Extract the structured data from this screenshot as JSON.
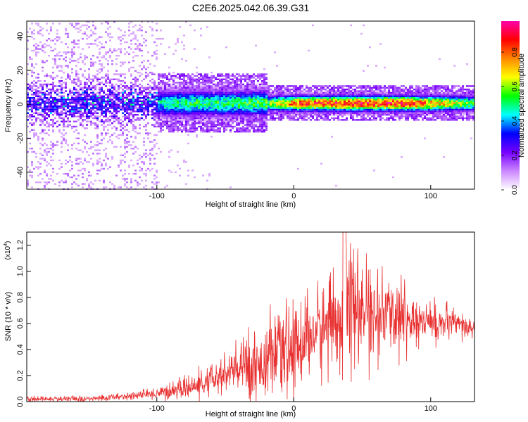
{
  "title": "C2E6.2025.042.06.39.G31",
  "chart_data": [
    {
      "type": "heatmap",
      "name": "spectrogram",
      "xlabel": "Height of straight line (km)",
      "ylabel": "Frequency (Hz)",
      "xlim": [
        -195,
        132
      ],
      "ylim": [
        -50,
        49
      ],
      "x_ticks": [
        -100,
        0,
        100
      ],
      "x_tick_labels": [
        "-100",
        "0",
        "100"
      ],
      "y_ticks": [
        -40,
        -20,
        0,
        20,
        40
      ],
      "y_tick_labels": [
        "-40",
        "-20",
        "0",
        "20",
        "40"
      ],
      "ridge": {
        "frequency_hz": 1,
        "peak_amplitude": 0.85,
        "onset_height_km": -110,
        "description_points_x": [
          -110,
          -80,
          -50,
          -20,
          0,
          40,
          80,
          132
        ],
        "amplitude_along_ridge": [
          0.4,
          0.5,
          0.5,
          0.55,
          0.8,
          0.85,
          0.85,
          0.55
        ]
      },
      "noise_region_xlim": [
        -195,
        -100
      ],
      "colorbar": {
        "label": "Normalized spectral amplitude",
        "range": [
          0,
          0.98
        ],
        "ticks": [
          0.0,
          0.2,
          0.4,
          0.6,
          0.8
        ],
        "tick_labels": [
          "0.0",
          "0.2",
          "0.4",
          "0.6",
          "0.8"
        ],
        "colors": [
          "#ffffff",
          "#cc88ff",
          "#7700ff",
          "#0000ff",
          "#00ffff",
          "#00ff00",
          "#ffff00",
          "#ff8800",
          "#ff0000",
          "#ff00aa"
        ]
      }
    },
    {
      "type": "line",
      "name": "snr",
      "xlabel": "Height of straight line (km)",
      "ylabel": "SNR (10 * v/v)",
      "scale_label_base": "(x10",
      "scale_label_exp": "4",
      "scale_label_end": ")",
      "xlim": [
        -195,
        132
      ],
      "ylim": [
        0,
        1.3
      ],
      "x_ticks": [
        -100,
        0,
        100
      ],
      "x_tick_labels": [
        "-100",
        "0",
        "100"
      ],
      "y_ticks": [
        0.0,
        0.2,
        0.4,
        0.6,
        0.8,
        1.0,
        1.2
      ],
      "y_tick_labels": [
        "0.0",
        "0.2",
        "0.4",
        "0.6",
        "0.8",
        "1.0",
        "1.2"
      ],
      "color": "#e83030",
      "envelope_x": [
        -195,
        -150,
        -110,
        -90,
        -70,
        -50,
        -40,
        -30,
        -20,
        -10,
        0,
        10,
        20,
        30,
        38,
        50,
        60,
        70,
        80,
        90,
        100,
        110,
        120,
        132
      ],
      "envelope_mean": [
        0.02,
        0.02,
        0.05,
        0.08,
        0.12,
        0.2,
        0.25,
        0.28,
        0.3,
        0.35,
        0.4,
        0.5,
        0.55,
        0.6,
        0.7,
        0.68,
        0.65,
        0.66,
        0.64,
        0.62,
        0.6,
        0.6,
        0.58,
        0.55
      ],
      "envelope_spread": [
        0.02,
        0.02,
        0.03,
        0.06,
        0.08,
        0.15,
        0.2,
        0.25,
        0.25,
        0.3,
        0.3,
        0.3,
        0.32,
        0.35,
        0.55,
        0.3,
        0.3,
        0.25,
        0.25,
        0.2,
        0.15,
        0.12,
        0.1,
        0.08
      ]
    }
  ]
}
